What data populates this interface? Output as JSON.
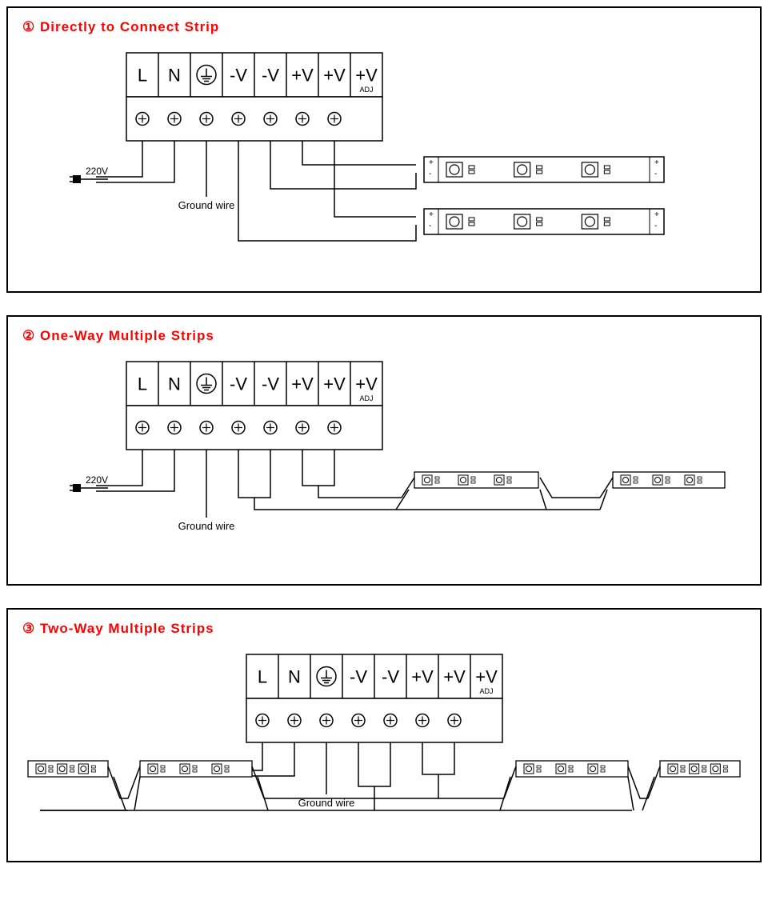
{
  "panels": [
    {
      "num": "①",
      "title": "Directly to Connect Strip"
    },
    {
      "num": "②",
      "title": "One-Way Multiple Strips"
    },
    {
      "num": "③",
      "title": "Two-Way Multiple Strips"
    }
  ],
  "terminal_labels": [
    "L",
    "N",
    "⏚",
    "-V",
    "-V",
    "+V",
    "+V",
    "+V"
  ],
  "adj_label": "ADJ",
  "input_voltage": "220V",
  "ground_label": "Ground wire",
  "colors": {
    "stroke": "#000000",
    "fill": "#ffffff",
    "title": "#ff0000"
  },
  "stroke_width": 1.5,
  "terminal_font_size": 22,
  "label_font_size": 13,
  "small_font_size": 10
}
